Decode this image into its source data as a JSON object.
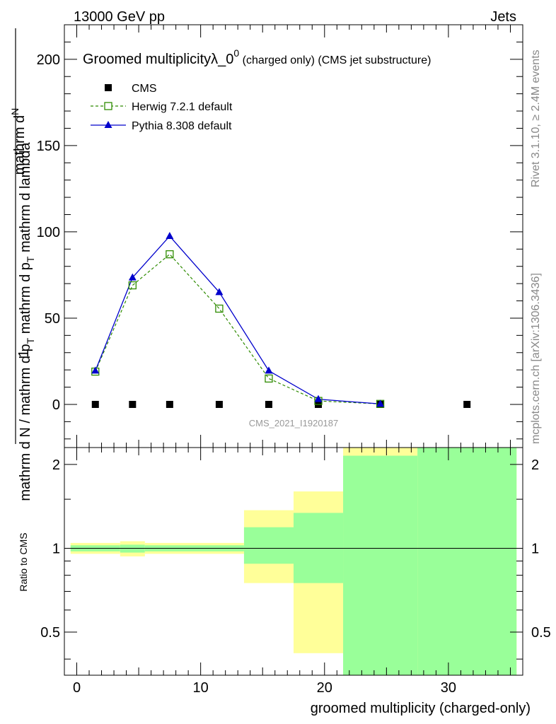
{
  "header": {
    "left": "13000 GeV pp",
    "right": "Jets"
  },
  "side_labels": {
    "rivet": "Rivet 3.1.10, ≥ 2.4M events",
    "mcplots": "mcplots.cern.ch [arXiv:1306.3436]"
  },
  "analysis_id": "CMS_2021_I1920187",
  "colors": {
    "cms": "#000000",
    "herwig": "#2e8b00",
    "pythia": "#0000cc",
    "band_yellow": "#ffff99",
    "band_green": "#99ff99"
  },
  "chart_data": [
    {
      "type": "line",
      "title_main": "Groomed multiplicityλ_0",
      "title_sup": "0",
      "title_tail": " (charged only) (CMS jet substructure)",
      "ylabel_top": "1",
      "ylabel_top_line": "mathrm d",
      "ylabel_top_tail": "N",
      "ylabel_bottom": "mathrm d N / mathrm d p",
      "ylabel_bottom_sub": "T",
      "ylabel_bottom_tail": " mathrm d p",
      "ylabel_bottom_sub2": "T",
      "ylabel_bottom_tail2": " mathrm d lambda",
      "ylim": [
        -25,
        220
      ],
      "xlim": [
        -1,
        36
      ],
      "yticks": [
        0,
        50,
        100,
        150,
        200
      ],
      "grid": false,
      "legend_position": "top-left",
      "series": [
        {
          "name": "CMS",
          "marker": "square",
          "x": [
            1.5,
            4.5,
            7.5,
            11.5,
            15.5,
            19.5,
            24.5,
            31.5
          ],
          "values": [
            0,
            0,
            0,
            0,
            0,
            0,
            0,
            0
          ]
        },
        {
          "name": "Herwig 7.2.1 default",
          "marker": "open-square",
          "x": [
            1.5,
            4.5,
            7.5,
            11.5,
            15.5,
            19.5,
            24.5
          ],
          "values": [
            19,
            69,
            87,
            55.5,
            15,
            2,
            0.3
          ]
        },
        {
          "name": "Pythia 8.308 default",
          "marker": "triangle",
          "x": [
            1.5,
            4.5,
            7.5,
            11.5,
            15.5,
            19.5,
            24.5
          ],
          "values": [
            19.5,
            73.5,
            97.5,
            65,
            19.5,
            3,
            0.3
          ]
        }
      ]
    },
    {
      "type": "area",
      "ylabel": "Ratio to CMS",
      "xlabel": "groomed multiplicity (charged-only)",
      "ylim": [
        0.35,
        2.3
      ],
      "xlim": [
        -1,
        36
      ],
      "xticks": [
        0,
        10,
        20,
        30
      ],
      "yticks": [
        0.5,
        1,
        2
      ],
      "reference": 1,
      "bins": [
        {
          "lo": -0.5,
          "hi": 3.5,
          "yellow": [
            0.955,
            1.045
          ],
          "green": [
            0.975,
            1.025
          ]
        },
        {
          "lo": 3.5,
          "hi": 5.5,
          "yellow": [
            0.935,
            1.06
          ],
          "green": [
            0.965,
            1.03
          ]
        },
        {
          "lo": 5.5,
          "hi": 13.5,
          "yellow": [
            0.955,
            1.045
          ],
          "green": [
            0.975,
            1.025
          ]
        },
        {
          "lo": 13.5,
          "hi": 17.5,
          "yellow": [
            0.75,
            1.37
          ],
          "green": [
            0.88,
            1.19
          ]
        },
        {
          "lo": 17.5,
          "hi": 21.5,
          "yellow": [
            0.42,
            1.6
          ],
          "green": [
            0.75,
            1.34
          ]
        },
        {
          "lo": 21.5,
          "hi": 27.5,
          "yellow": [
            0.35,
            2.3
          ],
          "green": [
            0.35,
            2.15
          ]
        },
        {
          "lo": 27.5,
          "hi": 35.5,
          "yellow": [
            0.35,
            2.3
          ],
          "green": [
            0.35,
            2.3
          ]
        }
      ]
    }
  ]
}
